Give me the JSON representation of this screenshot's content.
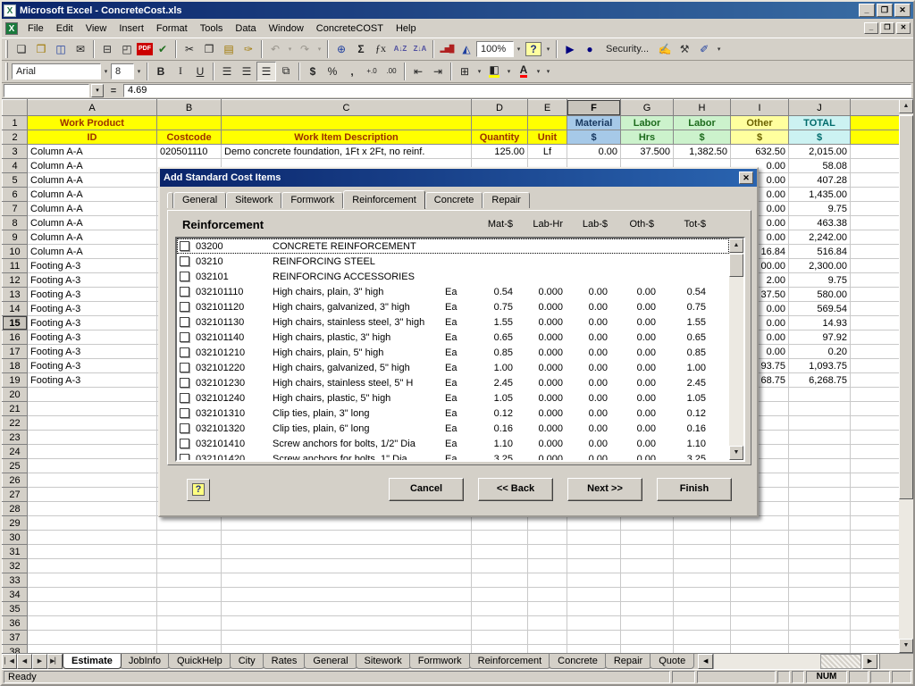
{
  "colors": {
    "titlebar_left": "#0a246a",
    "titlebar_right": "#3a6ea5",
    "chrome": "#d4d0c8",
    "grid_line": "#c9c9c9",
    "header_yellow": "#ffff00",
    "header_text": "#9c3000",
    "material_blue": "#a6c9e8",
    "labor_green": "#ccf2cc",
    "other_yellow": "#ffff9e",
    "total_cyan": "#ccf2f2",
    "dialog_blue": "#0a246a",
    "fill_swatch": "#ffff00",
    "font_swatch": "#ff0000",
    "pdf_red": "#cc0000"
  },
  "icons": {
    "app": "X",
    "workbook": "X",
    "dropdown": "▾",
    "up": "▲",
    "down": "▼",
    "left": "◀",
    "right": "▶"
  },
  "window": {
    "title": "Microsoft Excel - ConcreteCost.xls",
    "app_controls": [
      {
        "name": "app-minimize-button",
        "glyph": "_"
      },
      {
        "name": "app-restore-button",
        "glyph": "❐"
      },
      {
        "name": "app-close-button",
        "glyph": "✕"
      }
    ],
    "doc_controls": [
      {
        "name": "doc-minimize-button",
        "glyph": "_"
      },
      {
        "name": "doc-restore-button",
        "glyph": "❐"
      },
      {
        "name": "doc-close-button",
        "glyph": "✕"
      }
    ]
  },
  "menu": {
    "items": [
      "File",
      "Edit",
      "View",
      "Insert",
      "Format",
      "Tools",
      "Data",
      "Window",
      "ConcreteCOST",
      "Help"
    ]
  },
  "toolbars": {
    "standard": [
      {
        "name": "new-button",
        "glyph": "❏"
      },
      {
        "name": "open-button",
        "glyph": "❒",
        "cls": "c-amber"
      },
      {
        "name": "save-button",
        "glyph": "◫",
        "cls": "c-blue"
      },
      {
        "name": "email-button",
        "glyph": "✉"
      },
      {
        "sep": true
      },
      {
        "name": "print-button",
        "glyph": "⊟",
        "cls": "c-dark"
      },
      {
        "name": "print-preview-button",
        "glyph": "◰"
      },
      {
        "name": "pdf-button",
        "glyph": "PDF",
        "cls": "pdf"
      },
      {
        "name": "spelling-button",
        "glyph": "✔",
        "cls": "c-green"
      },
      {
        "sep": true
      },
      {
        "name": "cut-button",
        "glyph": "✂"
      },
      {
        "name": "copy-button",
        "glyph": "❐"
      },
      {
        "name": "paste-button",
        "glyph": "▤",
        "cls": "c-amber"
      },
      {
        "name": "format-painter-button",
        "glyph": "✑",
        "cls": "c-amber"
      },
      {
        "sep": true
      },
      {
        "name": "undo-button",
        "glyph": "↶",
        "cls": "dis"
      },
      {
        "name": "undo-dropdown",
        "glyph": "▾",
        "cls": "dis dd"
      },
      {
        "name": "redo-button",
        "glyph": "↷",
        "cls": "dis"
      },
      {
        "name": "redo-dropdown",
        "glyph": "▾",
        "cls": "dis dd"
      },
      {
        "sep": true
      },
      {
        "name": "insert-hyperlink-button",
        "glyph": "⊕",
        "cls": "c-blue"
      },
      {
        "name": "autosum-button",
        "glyph": "Σ",
        "cls": "fw"
      },
      {
        "name": "paste-function-button",
        "glyph": "ƒx",
        "cls": "ital"
      },
      {
        "name": "sort-ascending-button",
        "glyph": "A↓Z",
        "cls": "sort"
      },
      {
        "name": "sort-descending-button",
        "glyph": "Z↓A",
        "cls": "sort"
      },
      {
        "sep": true
      },
      {
        "name": "chart-wizard-button",
        "glyph": "▂▅█",
        "cls": "c-red tight"
      },
      {
        "name": "drawing-button",
        "glyph": "◭",
        "cls": "c-blue"
      },
      {
        "name": "zoom-combo",
        "glyph": "100%",
        "cls": "combo zoomw"
      },
      {
        "name": "zoom-dropdown",
        "glyph": "▾",
        "cls": "dd"
      },
      {
        "name": "help-button",
        "glyph": "?",
        "cls": "helpbub"
      },
      {
        "name": "help-dropdown",
        "glyph": "▾",
        "cls": "dd"
      },
      {
        "sep": true
      },
      {
        "name": "run-macro-button",
        "glyph": "▶",
        "cls": "c-navy"
      },
      {
        "name": "record-macro-button",
        "glyph": "●",
        "cls": "c-navy"
      },
      {
        "name": "security-button",
        "glyph": "Security...",
        "cls": "textbtn"
      },
      {
        "name": "design-mode-button",
        "glyph": "✍",
        "cls": "c-amber"
      },
      {
        "name": "properties-button",
        "glyph": "⚒",
        "cls": "c-dark"
      },
      {
        "name": "design-tools-button",
        "glyph": "✐",
        "cls": "c-blue"
      },
      {
        "name": "more-tools-dropdown",
        "glyph": "▾",
        "cls": "dd"
      }
    ],
    "formatting": [
      {
        "name": "font-name-combo",
        "glyph": "Arial",
        "cls": "combo wide"
      },
      {
        "name": "font-name-dropdown",
        "glyph": "▾",
        "cls": "dd"
      },
      {
        "name": "font-size-combo",
        "glyph": "8",
        "cls": "combo narrow"
      },
      {
        "name": "font-size-dropdown",
        "glyph": "▾",
        "cls": "dd"
      },
      {
        "sep": true
      },
      {
        "name": "bold-button",
        "glyph": "B",
        "cls": "fw"
      },
      {
        "name": "italic-button",
        "glyph": "I",
        "cls": "ital"
      },
      {
        "name": "underline-button",
        "glyph": "U",
        "cls": "und"
      },
      {
        "sep": true
      },
      {
        "name": "align-left-button",
        "glyph": "☰"
      },
      {
        "name": "align-center-button",
        "glyph": "☰"
      },
      {
        "name": "align-right-button",
        "glyph": "☰",
        "cls": "pressed"
      },
      {
        "name": "merge-center-button",
        "glyph": "⧉"
      },
      {
        "sep": true
      },
      {
        "name": "currency-button",
        "glyph": "$",
        "cls": "fw"
      },
      {
        "name": "percent-button",
        "glyph": "%"
      },
      {
        "name": "comma-button",
        "glyph": ",",
        "cls": "fw"
      },
      {
        "name": "increase-decimal-button",
        "glyph": "+.0",
        "cls": "tiny"
      },
      {
        "name": "decrease-decimal-button",
        "glyph": ".00",
        "cls": "tiny"
      },
      {
        "sep": true
      },
      {
        "name": "decrease-indent-button",
        "glyph": "⇤"
      },
      {
        "name": "increase-indent-button",
        "glyph": "⇥"
      },
      {
        "sep": true
      },
      {
        "name": "borders-button",
        "glyph": "⊞"
      },
      {
        "name": "borders-dropdown",
        "glyph": "▾",
        "cls": "dd"
      },
      {
        "name": "fill-color-button",
        "glyph": "◧",
        "cls": "ub-y"
      },
      {
        "name": "fill-color-dropdown",
        "glyph": "▾",
        "cls": "dd"
      },
      {
        "name": "font-color-button",
        "glyph": "A",
        "cls": "fw ub-r"
      },
      {
        "name": "font-color-dropdown",
        "glyph": "▾",
        "cls": "dd"
      },
      {
        "name": "more-buttons-dropdown",
        "glyph": "▾",
        "cls": "dd"
      }
    ]
  },
  "formula_bar": {
    "name_box": "",
    "equals": "=",
    "value": "4.69"
  },
  "sheet": {
    "active_row": 15,
    "col_headers": [
      {
        "label": ""
      },
      {
        "label": "A"
      },
      {
        "label": "B"
      },
      {
        "label": "C"
      },
      {
        "label": "D"
      },
      {
        "label": "E"
      },
      {
        "label": "F",
        "active": true
      },
      {
        "label": "G"
      },
      {
        "label": "H"
      },
      {
        "label": "I"
      },
      {
        "label": "J"
      },
      {
        "label": ""
      }
    ],
    "rows_full": [
      {
        "n": "1",
        "h": true,
        "cells": [
          {
            "t": "Work Product",
            "k": "y"
          },
          {
            "k": "y"
          },
          {
            "k": "y"
          },
          {
            "k": "y"
          },
          {
            "k": "y"
          },
          {
            "t": "Material",
            "k": "mat"
          },
          {
            "t": "Labor",
            "k": "lab"
          },
          {
            "t": "Labor",
            "k": "lab"
          },
          {
            "t": "Other",
            "k": "oth"
          },
          {
            "t": "TOTAL",
            "k": "tot"
          },
          {
            "k": "y"
          }
        ]
      },
      {
        "n": "2",
        "h": true,
        "cells": [
          {
            "t": "ID",
            "k": "y"
          },
          {
            "t": "Costcode",
            "k": "y"
          },
          {
            "t": "Work Item Description",
            "k": "y"
          },
          {
            "t": "Quantity",
            "k": "y"
          },
          {
            "t": "Unit",
            "k": "y"
          },
          {
            "t": "$",
            "k": "mat"
          },
          {
            "t": "Hrs",
            "k": "lab"
          },
          {
            "t": "$",
            "k": "lab"
          },
          {
            "t": "$",
            "k": "oth"
          },
          {
            "t": "$",
            "k": "tot"
          },
          {
            "k": "y"
          }
        ]
      },
      {
        "n": "3",
        "cells": [
          {
            "t": "Column A-A",
            "k": "t"
          },
          {
            "t": "020501110",
            "k": "t"
          },
          {
            "t": "Demo concrete foundation, 1Ft x 2Ft, no reinf.",
            "k": "t"
          },
          {
            "t": "125.00",
            "k": "n"
          },
          {
            "t": "Lf",
            "k": "c"
          },
          {
            "t": "0.00",
            "k": "n"
          },
          {
            "t": "37.500",
            "k": "n"
          },
          {
            "t": "1,382.50",
            "k": "n"
          },
          {
            "t": "632.50",
            "k": "n"
          },
          {
            "t": "2,015.00",
            "k": "n"
          },
          {}
        ]
      }
    ],
    "rows_data": [
      {
        "n": "4",
        "a": "Column A-A",
        "i": "0.00",
        "j": "58.08"
      },
      {
        "n": "5",
        "a": "Column A-A",
        "i": "0.00",
        "j": "407.28"
      },
      {
        "n": "6",
        "a": "Column A-A",
        "i": "0.00",
        "j": "1,435.00"
      },
      {
        "n": "7",
        "a": "Column A-A",
        "i": "0.00",
        "j": "9.75"
      },
      {
        "n": "8",
        "a": "Column A-A",
        "i": "0.00",
        "j": "463.38"
      },
      {
        "n": "9",
        "a": "Column A-A",
        "i": "0.00",
        "j": "2,242.00"
      },
      {
        "n": "10",
        "a": "Column A-A",
        "i": "16.84",
        "j": "516.84"
      },
      {
        "n": "11",
        "a": "Footing A-3",
        "i": "00.00",
        "j": "2,300.00"
      },
      {
        "n": "12",
        "a": "Footing A-3",
        "i": "2.00",
        "j": "9.75"
      },
      {
        "n": "13",
        "a": "Footing A-3",
        "i": "37.50",
        "j": "580.00"
      },
      {
        "n": "14",
        "a": "Footing A-3",
        "i": "0.00",
        "j": "569.54"
      },
      {
        "n": "15",
        "a": "Footing A-3",
        "i": "0.00",
        "j": "14.93"
      },
      {
        "n": "16",
        "a": "Footing A-3",
        "i": "0.00",
        "j": "97.92"
      },
      {
        "n": "17",
        "a": "Footing A-3",
        "i": "0.00",
        "j": "0.20"
      },
      {
        "n": "18",
        "a": "Footing A-3",
        "i": "93.75",
        "j": "1,093.75"
      },
      {
        "n": "19",
        "a": "Footing A-3",
        "i": "68.75",
        "j": "6,268.75"
      }
    ],
    "empty_from": 20,
    "empty_to": 38
  },
  "dialog": {
    "title": "Add Standard Cost Items",
    "close_glyph": "✕",
    "tabs": [
      {
        "label": "",
        "cls": "stub"
      },
      {
        "label": "General"
      },
      {
        "label": "Sitework"
      },
      {
        "label": "Formwork"
      },
      {
        "label": "Reinforcement",
        "active": true
      },
      {
        "label": "Concrete"
      },
      {
        "label": "Repair"
      }
    ],
    "heading": "Reinforcement",
    "columns": [
      "Mat-$",
      "Lab-Hr",
      "Lab-$",
      "Oth-$",
      "Tot-$"
    ],
    "items": [
      {
        "focused": true,
        "code": "03200",
        "desc": "CONCRETE REINFORCEMENT",
        "unit": "",
        "mat": "",
        "labhr": "",
        "lab": "",
        "oth": "",
        "tot": ""
      },
      {
        "code": "03210",
        "desc": "REINFORCING STEEL",
        "unit": "",
        "mat": "",
        "labhr": "",
        "lab": "",
        "oth": "",
        "tot": ""
      },
      {
        "code": "032101",
        "desc": "REINFORCING ACCESSORIES",
        "unit": "",
        "mat": "",
        "labhr": "",
        "lab": "",
        "oth": "",
        "tot": ""
      },
      {
        "code": "032101110",
        "desc": "High chairs, plain, 3\" high",
        "unit": "Ea",
        "mat": "0.54",
        "labhr": "0.000",
        "lab": "0.00",
        "oth": "0.00",
        "tot": "0.54"
      },
      {
        "code": "032101120",
        "desc": "High chairs, galvanized, 3\" high",
        "unit": "Ea",
        "mat": "0.75",
        "labhr": "0.000",
        "lab": "0.00",
        "oth": "0.00",
        "tot": "0.75"
      },
      {
        "code": "032101130",
        "desc": "High chairs, stainless steel, 3\" high",
        "unit": "Ea",
        "mat": "1.55",
        "labhr": "0.000",
        "lab": "0.00",
        "oth": "0.00",
        "tot": "1.55"
      },
      {
        "code": "032101140",
        "desc": "High chairs, plastic, 3\" high",
        "unit": "Ea",
        "mat": "0.65",
        "labhr": "0.000",
        "lab": "0.00",
        "oth": "0.00",
        "tot": "0.65"
      },
      {
        "code": "032101210",
        "desc": "High chairs, plain, 5\" high",
        "unit": "Ea",
        "mat": "0.85",
        "labhr": "0.000",
        "lab": "0.00",
        "oth": "0.00",
        "tot": "0.85"
      },
      {
        "code": "032101220",
        "desc": "High chairs, galvanized, 5\" high",
        "unit": "Ea",
        "mat": "1.00",
        "labhr": "0.000",
        "lab": "0.00",
        "oth": "0.00",
        "tot": "1.00"
      },
      {
        "code": "032101230",
        "desc": "High chairs, stainless steel, 5\" H",
        "unit": "Ea",
        "mat": "2.45",
        "labhr": "0.000",
        "lab": "0.00",
        "oth": "0.00",
        "tot": "2.45"
      },
      {
        "code": "032101240",
        "desc": "High chairs, plastic, 5\" high",
        "unit": "Ea",
        "mat": "1.05",
        "labhr": "0.000",
        "lab": "0.00",
        "oth": "0.00",
        "tot": "1.05"
      },
      {
        "code": "032101310",
        "desc": "Clip ties, plain, 3\" long",
        "unit": "Ea",
        "mat": "0.12",
        "labhr": "0.000",
        "lab": "0.00",
        "oth": "0.00",
        "tot": "0.12"
      },
      {
        "code": "032101320",
        "desc": "Clip ties, plain, 6\" long",
        "unit": "Ea",
        "mat": "0.16",
        "labhr": "0.000",
        "lab": "0.00",
        "oth": "0.00",
        "tot": "0.16"
      },
      {
        "code": "032101410",
        "desc": "Screw anchors for bolts, 1/2\" Dia",
        "unit": "Ea",
        "mat": "1.10",
        "labhr": "0.000",
        "lab": "0.00",
        "oth": "0.00",
        "tot": "1.10"
      },
      {
        "code": "032101420",
        "desc": "Screw anchors for bolts, 1\" Dia",
        "unit": "Ea",
        "mat": "3.25",
        "labhr": "0.000",
        "lab": "0.00",
        "oth": "0.00",
        "tot": "3.25"
      }
    ],
    "help_label": "?",
    "buttons": [
      {
        "name": "cancel-button",
        "label": "Cancel"
      },
      {
        "name": "back-button",
        "label": "<< Back"
      },
      {
        "name": "next-button",
        "label": "Next >>"
      },
      {
        "name": "finish-button",
        "label": "Finish"
      }
    ]
  },
  "sheet_tabs_nav": [
    {
      "name": "first-sheet-button",
      "glyph": "▏◀"
    },
    {
      "name": "prev-sheet-button",
      "glyph": "◀"
    },
    {
      "name": "next-sheet-button",
      "glyph": "▶"
    },
    {
      "name": "last-sheet-button",
      "glyph": "▶▏"
    }
  ],
  "sheet_tabs": [
    {
      "label": "Estimate",
      "active": true
    },
    {
      "label": "JobInfo"
    },
    {
      "label": "QuickHelp"
    },
    {
      "label": "City"
    },
    {
      "label": "Rates"
    },
    {
      "label": "General"
    },
    {
      "label": "Sitework"
    },
    {
      "label": "Formwork"
    },
    {
      "label": "Reinforcement"
    },
    {
      "label": "Concrete"
    },
    {
      "label": "Repair"
    },
    {
      "label": "Quote"
    }
  ],
  "status": {
    "ready": "Ready",
    "panels": [
      "",
      "",
      "",
      "",
      "NUM",
      "",
      "",
      ""
    ]
  }
}
